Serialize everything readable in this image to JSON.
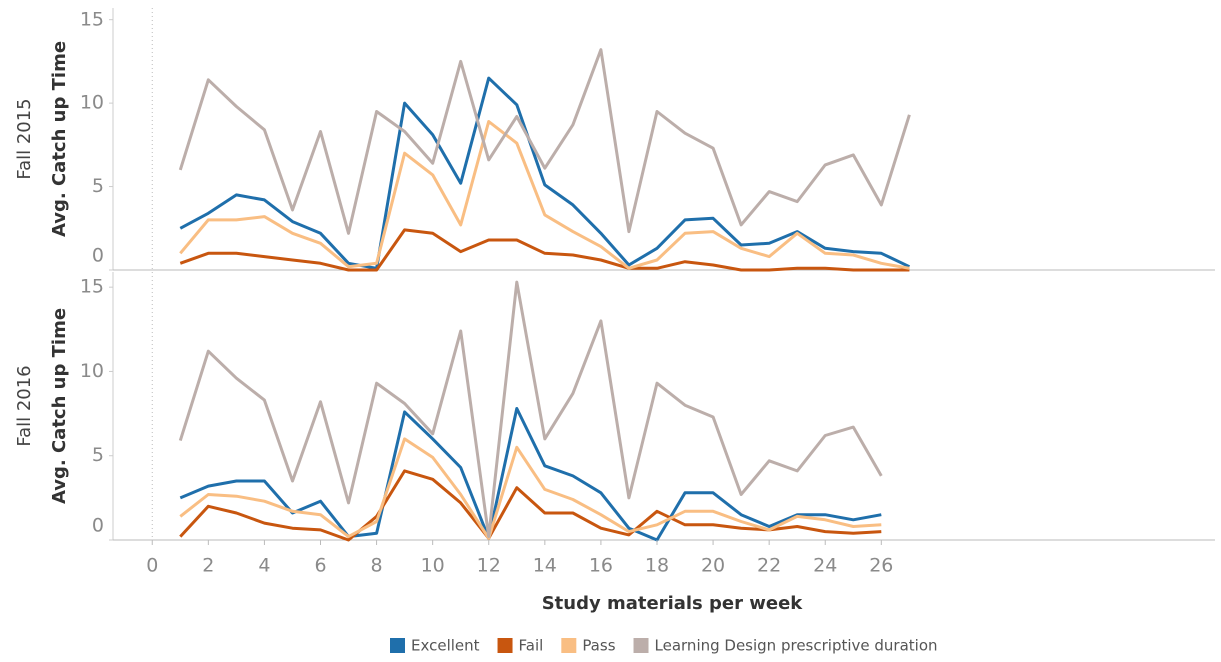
{
  "chart_data": [
    {
      "type": "line",
      "panel_label": "Fall 2015",
      "ylabel": "Avg. Catch up Time",
      "x": [
        1,
        2,
        3,
        4,
        5,
        6,
        7,
        8,
        9,
        10,
        11,
        12,
        13,
        14,
        15,
        16,
        17,
        18,
        19,
        20,
        21,
        22,
        23,
        24,
        25,
        26,
        27
      ],
      "xlim": [
        -1.4,
        37.9
      ],
      "ylim": [
        0,
        15.7
      ],
      "yticks": [
        0,
        5,
        10,
        15
      ],
      "series": [
        {
          "color": "#1f6fab",
          "values": [
            2.5,
            3.4,
            4.5,
            4.2,
            2.9,
            2.2,
            0.4,
            0.1,
            10,
            8.1,
            5.2,
            11.5,
            9.9,
            5.1,
            3.9,
            2.2,
            0.3,
            1.3,
            3.0,
            3.1,
            1.5,
            1.6,
            2.3,
            1.3,
            1.1,
            1.0,
            0.2
          ]
        },
        {
          "color": "#c8560f",
          "values": [
            0.4,
            1.0,
            1.0,
            0.8,
            0.6,
            0.4,
            0,
            0,
            2.4,
            2.2,
            1.1,
            1.8,
            1.8,
            1.0,
            0.9,
            0.6,
            0.1,
            0.1,
            0.5,
            0.3,
            0,
            0,
            0.1,
            0.1,
            0,
            0,
            0
          ]
        },
        {
          "color": "#f9be83",
          "values": [
            1.0,
            3.0,
            3.0,
            3.2,
            2.2,
            1.6,
            0.2,
            0.4,
            7.0,
            5.7,
            2.7,
            8.9,
            7.6,
            3.3,
            2.3,
            1.4,
            0.1,
            0.6,
            2.2,
            2.3,
            1.3,
            0.8,
            2.2,
            1.0,
            0.9,
            0.4,
            0.1
          ]
        },
        {
          "color": "#bcaeaa",
          "values": [
            6.0,
            11.4,
            9.8,
            8.4,
            3.6,
            8.3,
            2.2,
            9.5,
            8.3,
            6.4,
            12.5,
            6.6,
            9.2,
            6.1,
            8.7,
            13.2,
            2.3,
            9.5,
            8.2,
            7.3,
            2.7,
            4.7,
            4.1,
            6.3,
            6.9,
            3.9,
            9.3
          ]
        }
      ]
    },
    {
      "type": "line",
      "panel_label": "Fall 2016",
      "ylabel": "Avg. Catch up Time",
      "xlabel": "Study materials per week",
      "x": [
        1,
        2,
        3,
        4,
        5,
        6,
        7,
        8,
        9,
        10,
        11,
        12,
        13,
        14,
        15,
        16,
        17,
        18,
        19,
        20,
        21,
        22,
        23,
        24,
        25,
        26
      ],
      "xlim": [
        -1.4,
        37.9
      ],
      "ylim": [
        0,
        15.9
      ],
      "yticks": [
        0,
        5,
        10,
        15
      ],
      "xticks": [
        0,
        2,
        4,
        6,
        8,
        10,
        12,
        14,
        16,
        18,
        20,
        22,
        24,
        26
      ],
      "series": [
        {
          "name": "Excellent",
          "color": "#1f6fab",
          "values": [
            2.5,
            3.2,
            3.5,
            3.5,
            1.6,
            2.3,
            0.2,
            0.4,
            7.6,
            6.0,
            4.3,
            0.1,
            7.8,
            4.4,
            3.8,
            2.8,
            0.7,
            0,
            2.8,
            2.8,
            1.5,
            0.8,
            1.5,
            1.5,
            1.2,
            1.5
          ]
        },
        {
          "name": "Fail",
          "color": "#c8560f",
          "values": [
            0.2,
            2.0,
            1.6,
            1.0,
            0.7,
            0.6,
            0,
            1.4,
            4.1,
            3.6,
            2.2,
            0.1,
            3.1,
            1.6,
            1.6,
            0.7,
            0.3,
            1.7,
            0.9,
            0.9,
            0.7,
            0.6,
            0.8,
            0.5,
            0.4,
            0.5
          ]
        },
        {
          "name": "Pass",
          "color": "#f9be83",
          "values": [
            1.4,
            2.7,
            2.6,
            2.3,
            1.7,
            1.5,
            0.2,
            1.1,
            6.0,
            4.9,
            2.7,
            0.1,
            5.5,
            3.0,
            2.4,
            1.5,
            0.5,
            0.9,
            1.7,
            1.7,
            1.1,
            0.6,
            1.4,
            1.2,
            0.8,
            0.9
          ]
        },
        {
          "name": "Learning Design prescriptive duration",
          "color": "#bcaeaa",
          "values": [
            5.9,
            11.2,
            9.6,
            8.3,
            3.5,
            8.2,
            2.2,
            9.3,
            8.1,
            6.3,
            12.4,
            0.2,
            15.3,
            6.0,
            8.7,
            13.0,
            2.5,
            9.3,
            8.0,
            7.3,
            2.7,
            4.7,
            4.1,
            6.2,
            6.7,
            3.8
          ]
        }
      ]
    }
  ]
}
